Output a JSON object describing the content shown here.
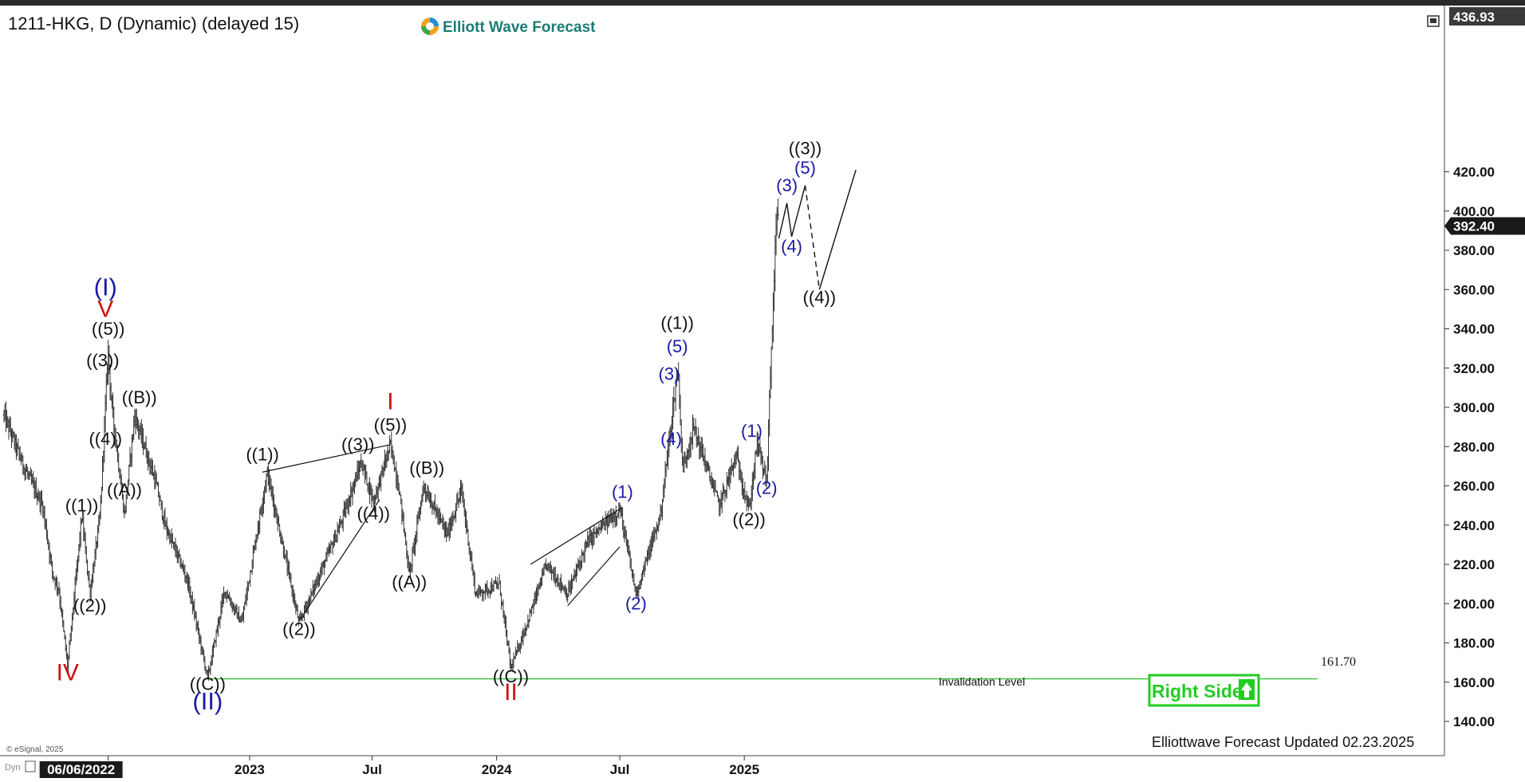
{
  "header": {
    "symbol_title": "1211-HKG, D (Dynamic) (delayed 15)",
    "brand": "Elliott Wave Forecast",
    "footer_left": "© eSignal, 2025",
    "footer_dyn": "Dyn",
    "updated": "Elliottwave Forecast Updated 02.23.2025",
    "right_side_button": "Right Side",
    "invalidation_label": "Invalidation Level",
    "invalidation_value": "161.70"
  },
  "colors": {
    "price_bars": "#333333",
    "wave_black": "#111111",
    "wave_blue": "#1a1aa6",
    "wave_red": "#d01010",
    "invalidation_line": "#3dbf3d",
    "right_side": "#22cc22",
    "axis_flag": "#1a1a1a"
  },
  "chart_data": {
    "type": "ohlc",
    "title": "1211-HKG, D (Dynamic) (delayed 15)",
    "ylim": [
      130,
      440
    ],
    "y_ticks": [
      140,
      160,
      180,
      200,
      220,
      240,
      260,
      280,
      300,
      320,
      340,
      360,
      380,
      400,
      420
    ],
    "y_tick_labels": [
      "140.00",
      "160.00",
      "180.00",
      "200.00",
      "220.00",
      "240.00",
      "260.00",
      "280.00",
      "300.00",
      "320.00",
      "340.00",
      "360.00",
      "380.00",
      "400.00",
      "420.00"
    ],
    "top_value": "436.93",
    "last_price": "392.40",
    "x_ticks": [
      {
        "label": "06/06/2022",
        "date": "2022-06-06",
        "highlight": true
      },
      {
        "label": "2023",
        "date": "2023-01-01"
      },
      {
        "label": "Jul",
        "date": "2023-07-01"
      },
      {
        "label": "2024",
        "date": "2024-01-01"
      },
      {
        "label": "Jul",
        "date": "2024-07-01"
      },
      {
        "label": "2025",
        "date": "2025-01-01"
      }
    ],
    "price_path": [
      [
        "2022-01-03",
        296
      ],
      [
        "2022-02-01",
        270
      ],
      [
        "2022-03-01",
        250
      ],
      [
        "2022-03-16",
        215
      ],
      [
        "2022-03-25",
        207
      ],
      [
        "2022-04-07",
        168
      ],
      [
        "2022-04-28",
        245
      ],
      [
        "2022-05-10",
        205
      ],
      [
        "2022-05-25",
        245
      ],
      [
        "2022-06-06",
        330
      ],
      [
        "2022-06-10",
        305
      ],
      [
        "2022-06-30",
        245
      ],
      [
        "2022-07-15",
        296
      ],
      [
        "2022-08-15",
        262
      ],
      [
        "2022-08-29",
        240
      ],
      [
        "2022-10-01",
        212
      ],
      [
        "2022-10-31",
        162
      ],
      [
        "2022-11-25",
        207
      ],
      [
        "2022-12-20",
        190
      ],
      [
        "2023-01-27",
        267
      ],
      [
        "2023-03-15",
        190
      ],
      [
        "2023-05-15",
        240
      ],
      [
        "2023-06-15",
        272
      ],
      [
        "2023-07-03",
        252
      ],
      [
        "2023-07-28",
        281
      ],
      [
        "2023-08-10",
        258
      ],
      [
        "2023-08-25",
        215
      ],
      [
        "2023-09-15",
        260
      ],
      [
        "2023-10-20",
        235
      ],
      [
        "2023-11-10",
        258
      ],
      [
        "2023-12-01",
        205
      ],
      [
        "2024-01-05",
        210
      ],
      [
        "2024-01-22",
        167
      ],
      [
        "2024-02-15",
        190
      ],
      [
        "2024-03-15",
        220
      ],
      [
        "2024-04-15",
        205
      ],
      [
        "2024-05-15",
        232
      ],
      [
        "2024-07-01",
        248
      ],
      [
        "2024-07-25",
        205
      ],
      [
        "2024-08-30",
        245
      ],
      [
        "2024-09-25",
        321
      ],
      [
        "2024-10-02",
        268
      ],
      [
        "2024-10-18",
        290
      ],
      [
        "2024-11-25",
        250
      ],
      [
        "2024-12-20",
        275
      ],
      [
        "2025-01-08",
        247
      ],
      [
        "2025-01-20",
        282
      ],
      [
        "2025-02-03",
        262
      ],
      [
        "2025-02-10",
        330
      ],
      [
        "2025-02-18",
        398
      ],
      [
        "2025-02-21",
        392.4
      ]
    ],
    "projection": [
      [
        "2025-02-21",
        386
      ],
      [
        "2025-03-05",
        404
      ],
      [
        "2025-03-12",
        387
      ],
      [
        "2025-04-01",
        413
      ],
      [
        "2025-04-22",
        360
      ],
      [
        "2025-06-15",
        421
      ]
    ],
    "invalidation_level": 161.7,
    "wave_labels": [
      {
        "text": "IV",
        "date": "2022-04-07",
        "price": 161,
        "color": "red",
        "size": "big"
      },
      {
        "text": "((1))",
        "date": "2022-04-28",
        "price": 247,
        "color": "black"
      },
      {
        "text": "((2))",
        "date": "2022-05-10",
        "price": 196,
        "color": "black"
      },
      {
        "text": "((3))",
        "date": "2022-05-29",
        "price": 321,
        "color": "black"
      },
      {
        "text": "((4))",
        "date": "2022-06-02",
        "price": 281,
        "color": "black"
      },
      {
        "text": "((5))",
        "date": "2022-06-06",
        "price": 337,
        "color": "black"
      },
      {
        "text": "V",
        "date": "2022-06-02",
        "price": 346,
        "color": "red",
        "size": "big"
      },
      {
        "text": "(I)",
        "date": "2022-06-02",
        "price": 357,
        "color": "blue",
        "size": "big"
      },
      {
        "text": "((A))",
        "date": "2022-06-30",
        "price": 255,
        "color": "black"
      },
      {
        "text": "((B))",
        "date": "2022-07-22",
        "price": 302,
        "color": "black"
      },
      {
        "text": "((C))",
        "date": "2022-10-31",
        "price": 156,
        "color": "black"
      },
      {
        "text": "(II)",
        "date": "2022-10-31",
        "price": 146,
        "color": "blue",
        "size": "big"
      },
      {
        "text": "((1))",
        "date": "2023-01-20",
        "price": 273,
        "color": "black"
      },
      {
        "text": "((2))",
        "date": "2023-03-15",
        "price": 184,
        "color": "black"
      },
      {
        "text": "((3))",
        "date": "2023-06-10",
        "price": 278,
        "color": "black"
      },
      {
        "text": "((4))",
        "date": "2023-07-03",
        "price": 243,
        "color": "black"
      },
      {
        "text": "((5))",
        "date": "2023-07-28",
        "price": 288,
        "color": "black"
      },
      {
        "text": "I",
        "date": "2023-07-28",
        "price": 299,
        "color": "red",
        "size": "big"
      },
      {
        "text": "((A))",
        "date": "2023-08-25",
        "price": 208,
        "color": "black"
      },
      {
        "text": "((B))",
        "date": "2023-09-20",
        "price": 266,
        "color": "black"
      },
      {
        "text": "((C))",
        "date": "2024-01-22",
        "price": 160,
        "color": "black"
      },
      {
        "text": "II",
        "date": "2024-01-22",
        "price": 151,
        "color": "red",
        "size": "big"
      },
      {
        "text": "(1)",
        "date": "2024-07-05",
        "price": 254,
        "color": "blue"
      },
      {
        "text": "(2)",
        "date": "2024-07-25",
        "price": 197,
        "color": "blue"
      },
      {
        "text": "(3)",
        "date": "2024-09-12",
        "price": 314,
        "color": "blue"
      },
      {
        "text": "(4)",
        "date": "2024-09-15",
        "price": 281,
        "color": "blue"
      },
      {
        "text": "(5)",
        "date": "2024-09-24",
        "price": 328,
        "color": "blue"
      },
      {
        "text": "((1))",
        "date": "2024-09-24",
        "price": 340,
        "color": "black"
      },
      {
        "text": "((2))",
        "date": "2025-01-08",
        "price": 240,
        "color": "black"
      },
      {
        "text": "(1)",
        "date": "2025-01-12",
        "price": 285,
        "color": "blue"
      },
      {
        "text": "(2)",
        "date": "2025-02-03",
        "price": 256,
        "color": "blue"
      },
      {
        "text": "(3)",
        "date": "2025-03-05",
        "price": 410,
        "color": "blue"
      },
      {
        "text": "(4)",
        "date": "2025-03-12",
        "price": 379,
        "color": "blue"
      },
      {
        "text": "(5)",
        "date": "2025-04-01",
        "price": 419,
        "color": "blue"
      },
      {
        "text": "((3))",
        "date": "2025-04-01",
        "price": 429,
        "color": "black"
      },
      {
        "text": "((4))",
        "date": "2025-04-22",
        "price": 353,
        "color": "black"
      }
    ],
    "channel_lines": [
      [
        [
          "2023-01-20",
          267
        ],
        [
          "2023-07-28",
          281
        ]
      ],
      [
        [
          "2023-03-15",
          191
        ],
        [
          "2023-07-12",
          253
        ]
      ],
      [
        [
          "2024-02-20",
          220
        ],
        [
          "2024-07-05",
          249
        ]
      ],
      [
        [
          "2024-04-15",
          199
        ],
        [
          "2024-07-01",
          229
        ]
      ]
    ]
  }
}
